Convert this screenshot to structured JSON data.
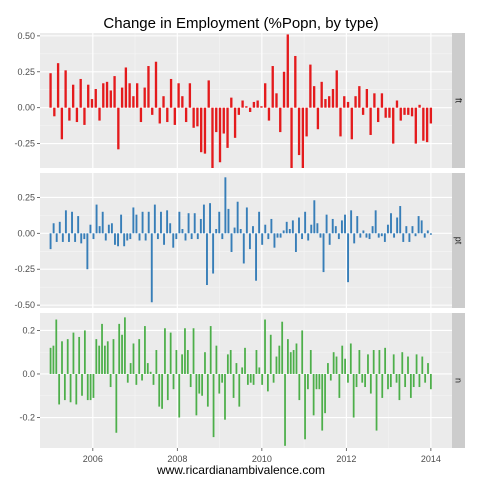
{
  "chart_data": {
    "type": "bar",
    "title": "Change in Employment (%Popn, by type)",
    "caption": "www.ricardianambivalence.com",
    "x_ticks": [
      "2006",
      "2008",
      "2010",
      "2012",
      "2014"
    ],
    "x_tick_values": [
      2006,
      2008,
      2010,
      2012,
      2014
    ],
    "xlim": [
      2004.75,
      2014.5
    ],
    "x_start": 2005.0,
    "x_end": 2014.0,
    "grid": true,
    "panels": [
      {
        "strip": "ft",
        "color": "#e41a1c",
        "ylim": [
          -0.42,
          0.52
        ],
        "y_ticks": [
          "-0.25",
          "0.00",
          "0.25",
          "0.50"
        ],
        "y_tick_values": [
          -0.25,
          0,
          0.25,
          0.5
        ],
        "values": [
          0.24,
          -0.06,
          0.31,
          -0.22,
          0.26,
          -0.09,
          0.16,
          -0.1,
          0.2,
          -0.12,
          0.16,
          0.06,
          0.13,
          -0.09,
          0.17,
          0.18,
          0.12,
          0.22,
          -0.29,
          0.14,
          0.28,
          0.17,
          0.08,
          0.17,
          -0.1,
          0.14,
          0.29,
          -0.05,
          0.32,
          -0.11,
          0.08,
          -0.1,
          0.2,
          -0.12,
          0.17,
          0.08,
          -0.1,
          0.17,
          -0.14,
          -0.13,
          -0.31,
          -0.32,
          0.19,
          -0.42,
          -0.17,
          -0.38,
          -0.18,
          -0.28,
          0.07,
          -0.21,
          -0.05,
          0.05,
          0.01,
          -0.03,
          0.04,
          0.05,
          0.01,
          0.17,
          -0.09,
          0.29,
          0.1,
          -0.17,
          0.25,
          0.51,
          -0.42,
          0.36,
          -0.33,
          -0.42,
          -0.2,
          0.3,
          0.15,
          -0.15,
          0.18,
          0.06,
          0.08,
          0.13,
          0.26,
          -0.2,
          0.08,
          0.04,
          -0.22,
          0.08,
          0.15,
          -0.05,
          0.13,
          -0.19,
          0.1,
          -0.1,
          0.1,
          -0.07,
          -0.07,
          -0.25,
          0.05,
          -0.09,
          -0.05,
          -0.05,
          -0.06,
          -0.25,
          0.02,
          -0.23,
          -0.24,
          -0.11
        ]
      },
      {
        "strip": "pt",
        "color": "#377eb8",
        "ylim": [
          -0.52,
          0.42
        ],
        "y_ticks": [
          "-0.50",
          "-0.25",
          "0.00",
          "0.25"
        ],
        "y_tick_values": [
          -0.5,
          -0.25,
          0,
          0.25
        ],
        "values": [
          -0.11,
          0.07,
          -0.06,
          0.08,
          -0.06,
          0.16,
          -0.06,
          0.15,
          -0.06,
          0.12,
          -0.07,
          -0.04,
          -0.25,
          0.06,
          -0.04,
          0.2,
          0.05,
          0.15,
          -0.05,
          0.06,
          0.07,
          -0.08,
          -0.09,
          0.13,
          -0.09,
          -0.05,
          -0.04,
          0.18,
          0.13,
          -0.05,
          0.15,
          -0.05,
          0.15,
          -0.48,
          0.2,
          -0.04,
          0.15,
          -0.08,
          0.16,
          0.07,
          -0.1,
          -0.04,
          0.15,
          0.03,
          -0.05,
          0.14,
          -0.04,
          0.14,
          -0.04,
          0.1,
          0.2,
          -0.36,
          0.21,
          -0.28,
          0.03,
          0.15,
          -0.04,
          0.39,
          0.17,
          -0.13,
          0.04,
          0.22,
          0.03,
          -0.21,
          0.18,
          -0.11,
          0.05,
          -0.33,
          0.15,
          -0.08,
          0.06,
          -0.04,
          0.1,
          -0.1,
          -0.03,
          -0.03,
          0.02,
          0.08,
          0.03,
          0.09,
          -0.13,
          0.11,
          -0.04,
          0.15,
          -0.05,
          0.06,
          0.23,
          0.07,
          -0.03,
          -0.27,
          0.13,
          -0.08,
          0.1,
          0.05,
          -0.04,
          0.09,
          0.13,
          -0.34,
          0.16,
          -0.07,
          0.12,
          -0.03,
          0.02,
          -0.03,
          -0.04,
          0.05,
          0.16,
          -0.03,
          -0.02,
          -0.06,
          0.06,
          0.14,
          -0.03,
          0.11,
          0.19,
          -0.06,
          0.05,
          -0.06,
          0.05,
          -0.02,
          0.12,
          0.09,
          -0.03,
          0.02,
          -0.01
        ]
      },
      {
        "strip": "n",
        "color": "#4daf4a",
        "ylim": [
          -0.34,
          0.28
        ],
        "y_ticks": [
          "-0.2",
          "0.0",
          "0.2"
        ],
        "y_tick_values": [
          -0.2,
          0,
          0.2
        ],
        "values": [
          0.12,
          0.13,
          0.25,
          -0.14,
          0.15,
          -0.12,
          0.16,
          -0.13,
          0.19,
          -0.14,
          0.17,
          -0.1,
          0.2,
          -0.12,
          -0.12,
          -0.11,
          0.16,
          0.13,
          0.23,
          0.13,
          0.15,
          -0.06,
          0.16,
          -0.27,
          0.23,
          0.18,
          0.26,
          -0.04,
          0.05,
          0.14,
          -0.05,
          0.16,
          -0.03,
          0.22,
          0.05,
          0.01,
          -0.05,
          0.11,
          -0.15,
          -0.16,
          0.21,
          -0.12,
          0.19,
          -0.07,
          0.11,
          -0.2,
          0.09,
          0.21,
          0.11,
          -0.06,
          0.21,
          -0.19,
          -0.09,
          -0.1,
          0.1,
          -0.15,
          0.22,
          -0.29,
          0.13,
          -0.09,
          -0.04,
          -0.21,
          0.09,
          0.11,
          -0.11,
          0.05,
          -0.15,
          0.03,
          0.12,
          -0.05,
          -0.04,
          -0.05,
          0.11,
          0.03,
          -0.05,
          0.25,
          -0.08,
          0.18,
          -0.04,
          0.08,
          0.13,
          0.24,
          -0.33,
          0.16,
          0.1,
          0.11,
          0.14,
          -0.12,
          0.2,
          -0.3,
          -0.07,
          0.11,
          -0.19,
          -0.07,
          -0.07,
          -0.26,
          -0.18,
          0.05,
          -0.03,
          0.1,
          0.08,
          -0.11,
          0.13,
          0.07,
          -0.04,
          0.14,
          -0.2,
          -0.06,
          0.11,
          -0.04,
          -0.06,
          0.09,
          -0.09,
          0.11,
          -0.26,
          0.11,
          -0.11,
          0.12,
          -0.07,
          -0.06,
          0.09,
          -0.04,
          -0.12,
          0.1,
          -0.06,
          0.08,
          -0.11,
          -0.06,
          0.09,
          -0.06,
          0.08,
          -0.04,
          0.05,
          -0.07
        ]
      }
    ]
  }
}
